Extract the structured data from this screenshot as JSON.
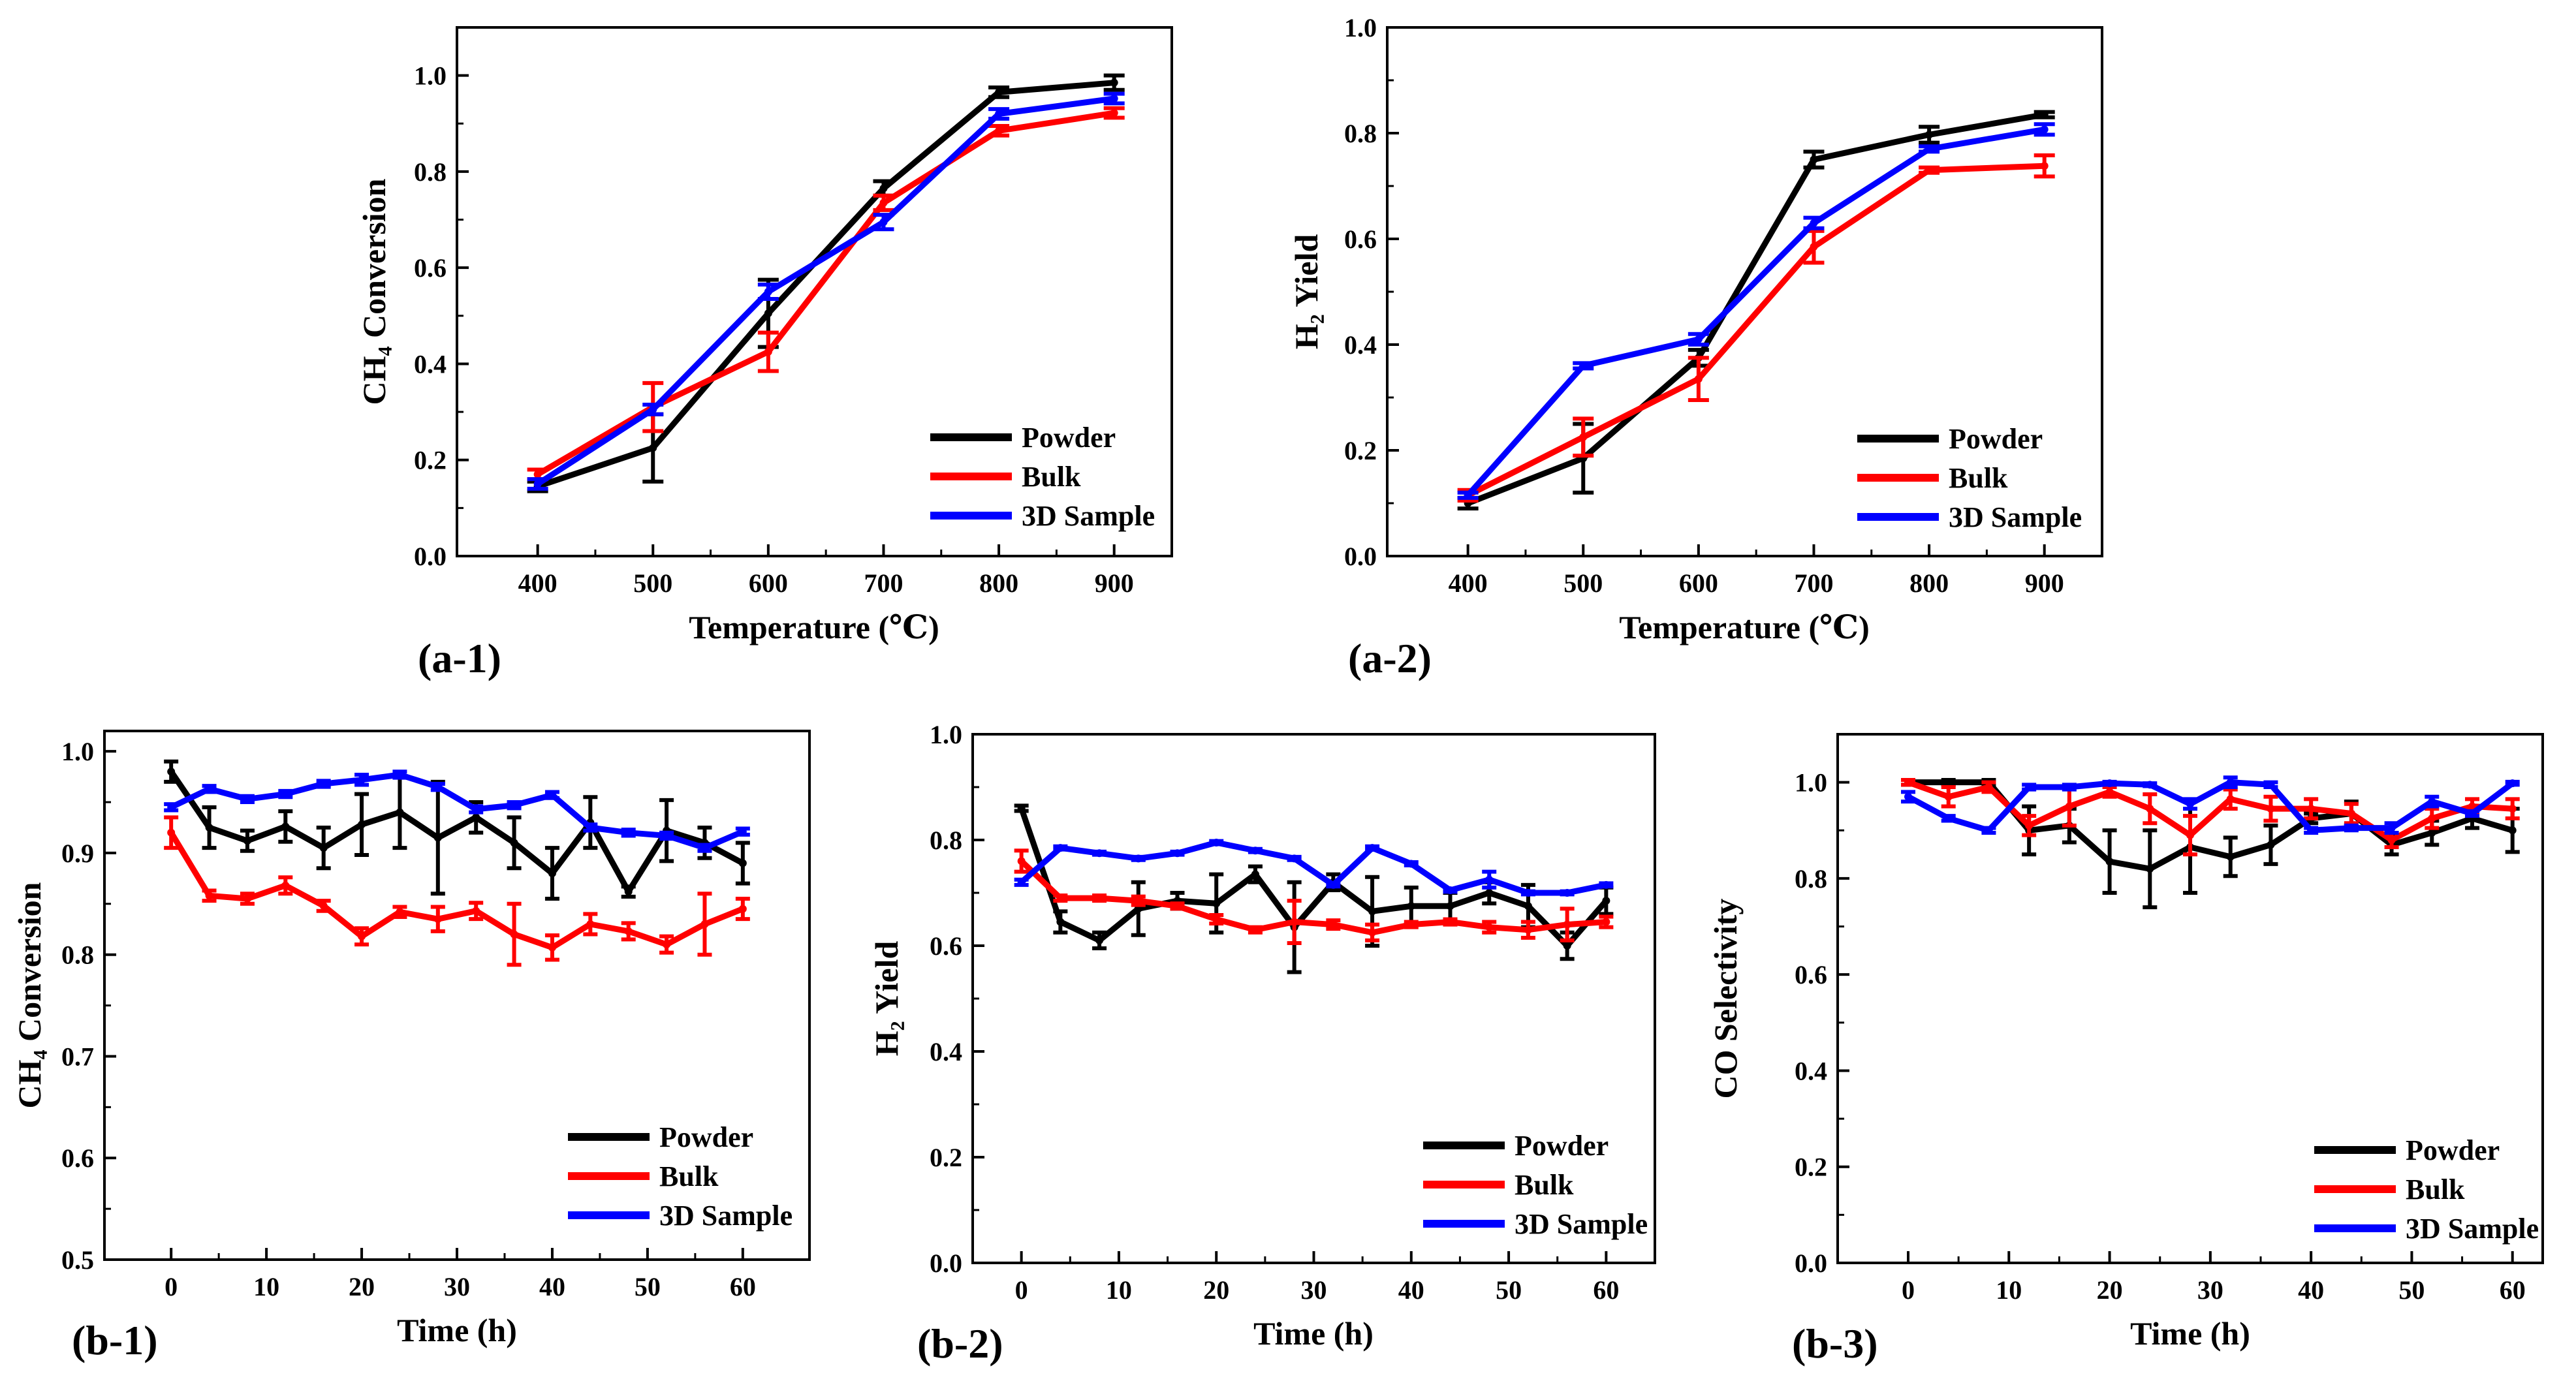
{
  "colors": {
    "Powder": "#000000",
    "Bulk": "#ff0000",
    "3D Sample": "#0000ff"
  },
  "chart_data": [
    {
      "id": "a1",
      "type": "line",
      "panel_label": "(a-1)",
      "xlabel": "Temperature (℃)",
      "ylabel": "CH₄ Conversion",
      "x": [
        400,
        500,
        600,
        700,
        800,
        900
      ],
      "xlim": [
        330,
        950
      ],
      "ylim": [
        0.0,
        1.1
      ],
      "xticks": [
        "400",
        "500",
        "600",
        "700",
        "800",
        "900"
      ],
      "yticks": [
        "0.0",
        "0.2",
        "0.4",
        "0.6",
        "0.8",
        "1.0"
      ],
      "legend_position": "bottom-right",
      "series": [
        {
          "name": "Powder",
          "values": [
            0.145,
            0.225,
            0.505,
            0.765,
            0.965,
            0.985
          ],
          "errors": [
            0.01,
            0.07,
            0.07,
            0.015,
            0.01,
            0.015
          ]
        },
        {
          "name": "Bulk",
          "values": [
            0.17,
            0.31,
            0.425,
            0.735,
            0.885,
            0.922
          ],
          "errors": [
            0.01,
            0.05,
            0.04,
            0.015,
            0.01,
            0.01
          ]
        },
        {
          "name": "3D Sample",
          "values": [
            0.15,
            0.305,
            0.55,
            0.695,
            0.92,
            0.952
          ],
          "errors": [
            0.01,
            0.01,
            0.015,
            0.015,
            0.01,
            0.01
          ]
        }
      ]
    },
    {
      "id": "a2",
      "type": "line",
      "panel_label": "(a-2)",
      "xlabel": "Temperature (℃)",
      "ylabel": "H₂ Yield",
      "x": [
        400,
        500,
        600,
        700,
        800,
        900
      ],
      "xlim": [
        330,
        950
      ],
      "ylim": [
        0.0,
        1.0
      ],
      "xticks": [
        "400",
        "500",
        "600",
        "700",
        "800",
        "900"
      ],
      "yticks": [
        "0.0",
        "0.2",
        "0.4",
        "0.6",
        "0.8",
        "1.0"
      ],
      "legend_position": "bottom-right",
      "series": [
        {
          "name": "Powder",
          "values": [
            0.1,
            0.185,
            0.375,
            0.75,
            0.797,
            0.835
          ],
          "errors": [
            0.01,
            0.065,
            0.015,
            0.015,
            0.015,
            0.005
          ]
        },
        {
          "name": "Bulk",
          "values": [
            0.115,
            0.225,
            0.335,
            0.585,
            0.73,
            0.738
          ],
          "errors": [
            0.01,
            0.035,
            0.04,
            0.03,
            0.005,
            0.02
          ]
        },
        {
          "name": "3D Sample",
          "values": [
            0.115,
            0.36,
            0.41,
            0.63,
            0.77,
            0.807
          ],
          "errors": [
            0.005,
            0.005,
            0.01,
            0.01,
            0.005,
            0.01
          ]
        }
      ]
    },
    {
      "id": "b1",
      "type": "line",
      "panel_label": "(b-1)",
      "xlabel": "Time (h)",
      "ylabel": "CH₄ Conversion",
      "x": [
        0,
        4,
        8,
        12,
        16,
        20,
        24,
        28,
        32,
        36,
        40,
        44,
        48,
        52,
        56,
        60
      ],
      "xlim": [
        -7,
        67
      ],
      "ylim": [
        0.5,
        1.02
      ],
      "xticks": [
        "0",
        "10",
        "20",
        "30",
        "40",
        "50",
        "60"
      ],
      "yticks": [
        "0.5",
        "0.6",
        "0.7",
        "0.8",
        "0.9",
        "1.0"
      ],
      "legend_position": "bottom-right",
      "series": [
        {
          "name": "Powder",
          "values": [
            0.98,
            0.925,
            0.912,
            0.926,
            0.905,
            0.928,
            0.94,
            0.915,
            0.935,
            0.91,
            0.88,
            0.93,
            0.862,
            0.922,
            0.91,
            0.89
          ],
          "errors": [
            0.01,
            0.02,
            0.01,
            0.015,
            0.02,
            0.03,
            0.035,
            0.055,
            0.015,
            0.025,
            0.025,
            0.025,
            0.005,
            0.03,
            0.015,
            0.02
          ]
        },
        {
          "name": "Bulk",
          "values": [
            0.92,
            0.858,
            0.855,
            0.868,
            0.848,
            0.818,
            0.842,
            0.835,
            0.843,
            0.82,
            0.807,
            0.83,
            0.823,
            0.81,
            0.83,
            0.845
          ],
          "errors": [
            0.015,
            0.005,
            0.005,
            0.008,
            0.005,
            0.008,
            0.005,
            0.012,
            0.008,
            0.03,
            0.012,
            0.01,
            0.008,
            0.008,
            0.03,
            0.01
          ]
        },
        {
          "name": "3D Sample",
          "values": [
            0.945,
            0.963,
            0.953,
            0.958,
            0.968,
            0.972,
            0.977,
            0.965,
            0.943,
            0.947,
            0.957,
            0.925,
            0.92,
            0.917,
            0.905,
            0.921
          ],
          "errors": [
            0.003,
            0.003,
            0.003,
            0.003,
            0.003,
            0.005,
            0.003,
            0.003,
            0.003,
            0.003,
            0.003,
            0.003,
            0.003,
            0.003,
            0.003,
            0.003
          ]
        }
      ]
    },
    {
      "id": "b2",
      "type": "line",
      "panel_label": "(b-2)",
      "xlabel": "Time (h)",
      "ylabel": "H₂ Yield",
      "x": [
        0,
        4,
        8,
        12,
        16,
        20,
        24,
        28,
        32,
        36,
        40,
        44,
        48,
        52,
        56,
        60
      ],
      "xlim": [
        -5,
        65
      ],
      "ylim": [
        0.0,
        1.0
      ],
      "xticks": [
        "0",
        "10",
        "20",
        "30",
        "40",
        "50",
        "60"
      ],
      "yticks": [
        "0.0",
        "0.2",
        "0.4",
        "0.6",
        "0.8",
        "1.0"
      ],
      "legend_position": "bottom-right",
      "series": [
        {
          "name": "Powder",
          "values": [
            0.86,
            0.645,
            0.61,
            0.67,
            0.685,
            0.68,
            0.735,
            0.635,
            0.72,
            0.665,
            0.675,
            0.675,
            0.7,
            0.675,
            0.6,
            0.685
          ],
          "errors": [
            0.005,
            0.02,
            0.015,
            0.05,
            0.015,
            0.055,
            0.015,
            0.085,
            0.015,
            0.065,
            0.035,
            0.025,
            0.02,
            0.04,
            0.025,
            0.025
          ]
        },
        {
          "name": "Bulk",
          "values": [
            0.76,
            0.69,
            0.69,
            0.685,
            0.675,
            0.65,
            0.63,
            0.645,
            0.64,
            0.625,
            0.64,
            0.645,
            0.635,
            0.63,
            0.64,
            0.645
          ],
          "errors": [
            0.02,
            0.005,
            0.005,
            0.008,
            0.005,
            0.008,
            0.005,
            0.04,
            0.008,
            0.015,
            0.005,
            0.005,
            0.01,
            0.015,
            0.03,
            0.01
          ]
        },
        {
          "name": "3D Sample",
          "values": [
            0.72,
            0.785,
            0.775,
            0.765,
            0.775,
            0.795,
            0.78,
            0.765,
            0.715,
            0.785,
            0.755,
            0.705,
            0.725,
            0.7,
            0.7,
            0.715
          ],
          "errors": [
            0.005,
            0.003,
            0.003,
            0.003,
            0.003,
            0.003,
            0.003,
            0.003,
            0.003,
            0.003,
            0.003,
            0.003,
            0.015,
            0.003,
            0.003,
            0.003
          ]
        }
      ]
    },
    {
      "id": "b3",
      "type": "line",
      "panel_label": "(b-3)",
      "xlabel": "Time (h)",
      "ylabel": "CO Selectivity",
      "x": [
        0,
        4,
        8,
        12,
        16,
        20,
        24,
        28,
        32,
        36,
        40,
        44,
        48,
        52,
        56,
        60
      ],
      "xlim": [
        -7,
        63
      ],
      "ylim": [
        0.0,
        1.1
      ],
      "xticks": [
        "0",
        "10",
        "20",
        "30",
        "40",
        "50",
        "60"
      ],
      "yticks": [
        "0.0",
        "0.2",
        "0.4",
        "0.6",
        "0.8",
        "1.0"
      ],
      "legend_position": "bottom-right",
      "series": [
        {
          "name": "Powder",
          "values": [
            1.0,
            1.0,
            1.0,
            0.9,
            0.91,
            0.835,
            0.82,
            0.865,
            0.845,
            0.87,
            0.925,
            0.935,
            0.87,
            0.895,
            0.925,
            0.9
          ],
          "errors": [
            0.005,
            0.005,
            0.005,
            0.05,
            0.035,
            0.065,
            0.08,
            0.095,
            0.04,
            0.04,
            0.01,
            0.025,
            0.02,
            0.025,
            0.02,
            0.045
          ]
        },
        {
          "name": "Bulk",
          "values": [
            1.0,
            0.97,
            0.99,
            0.91,
            0.95,
            0.98,
            0.945,
            0.89,
            0.965,
            0.945,
            0.945,
            0.935,
            0.88,
            0.925,
            0.95,
            0.945
          ],
          "errors": [
            0.005,
            0.02,
            0.01,
            0.02,
            0.04,
            0.01,
            0.03,
            0.04,
            0.02,
            0.025,
            0.02,
            0.02,
            0.015,
            0.02,
            0.015,
            0.02
          ]
        },
        {
          "name": "3D Sample",
          "values": [
            0.97,
            0.925,
            0.9,
            0.99,
            0.99,
            0.998,
            0.995,
            0.955,
            1.0,
            0.995,
            0.9,
            0.905,
            0.905,
            0.96,
            0.935,
            0.998
          ],
          "errors": [
            0.01,
            0.005,
            0.005,
            0.005,
            0.005,
            0.003,
            0.003,
            0.01,
            0.01,
            0.005,
            0.005,
            0.005,
            0.01,
            0.01,
            0.005,
            0.003
          ]
        }
      ]
    }
  ]
}
